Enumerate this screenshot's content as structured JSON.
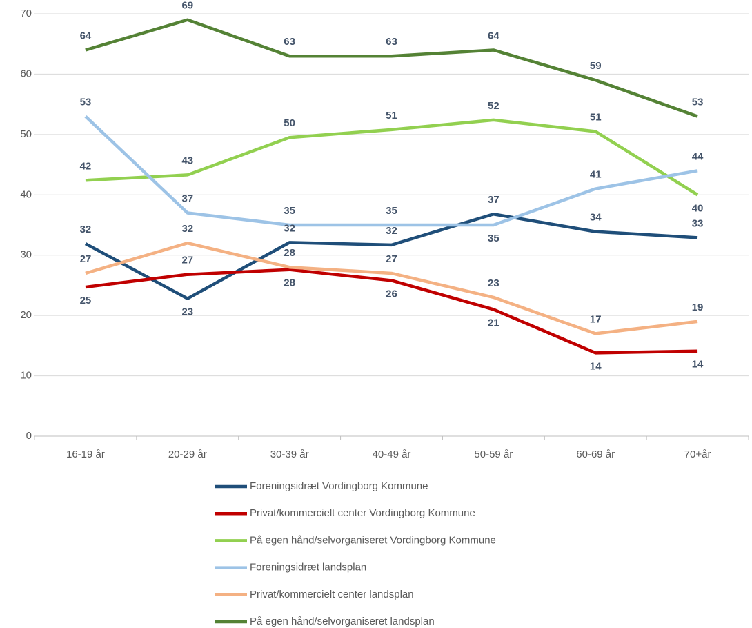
{
  "chart_data": {
    "type": "line",
    "categories": [
      "16-19 år",
      "20-29 år",
      "30-39 år",
      "40-49 år",
      "50-59 år",
      "60-69 år",
      "70+år"
    ],
    "ylim": [
      0,
      70
    ],
    "yticks": [
      0,
      10,
      20,
      30,
      40,
      50,
      60,
      70
    ],
    "grid": true,
    "legend": "bottom",
    "series": [
      {
        "name": "Foreningsidræt Vordingborg Kommune",
        "color": "#1f4e79",
        "values": [
          31.9,
          22.8,
          32.1,
          31.7,
          36.8,
          33.9,
          32.9
        ],
        "value_labels": [
          "32",
          "23",
          "32",
          "32",
          "37",
          "34",
          "33"
        ]
      },
      {
        "name": "Privat/kommercielt center Vordingborg Kommune",
        "color": "#c00000",
        "values": [
          24.7,
          26.8,
          27.6,
          25.8,
          21.0,
          13.8,
          14.1
        ],
        "value_labels": [
          "25",
          "27",
          "28",
          "26",
          "21",
          "14",
          "14"
        ]
      },
      {
        "name": "På egen hånd/selvorganiseret Vordingborg Kommune",
        "color": "#92d050",
        "values": [
          42.4,
          43.3,
          49.5,
          50.8,
          52.4,
          50.5,
          40.0
        ],
        "value_labels": [
          "42",
          "43",
          "50",
          "51",
          "52",
          "51",
          "40"
        ]
      },
      {
        "name": "Foreningsidræt landsplan",
        "color": "#9dc3e6",
        "values": [
          53,
          37,
          35,
          35,
          35,
          41,
          44
        ]
      },
      {
        "name": "Privat/kommercielt center landsplan",
        "color": "#f4b183",
        "values": [
          27,
          32,
          28,
          27,
          23,
          17,
          19
        ]
      },
      {
        "name": "På egen hånd/selvorganiseret landsplan",
        "color": "#548235",
        "values": [
          64,
          69,
          63,
          63,
          64,
          59,
          53
        ]
      }
    ]
  }
}
